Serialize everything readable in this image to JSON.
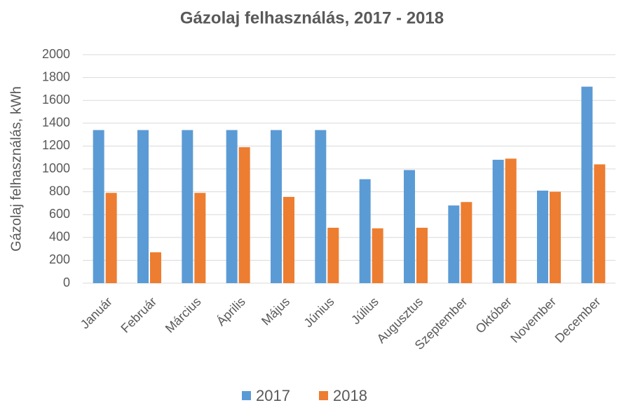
{
  "chart_data": {
    "type": "bar",
    "title": "Gázolaj felhasználás, 2017 - 2018",
    "y_label": "Gázolaj felhasználás, kWh",
    "categories": [
      "Január",
      "Február",
      "Március",
      "Április",
      "Május",
      "Június",
      "Július",
      "Augusztus",
      "Szeptember",
      "Október",
      "November",
      "December"
    ],
    "series": [
      {
        "name": "2017",
        "color": "#5b9bd5",
        "values": [
          1340,
          1340,
          1340,
          1340,
          1340,
          1340,
          910,
          990,
          680,
          1080,
          810,
          1720
        ]
      },
      {
        "name": "2018",
        "color": "#ed7d31",
        "values": [
          790,
          270,
          790,
          1190,
          755,
          485,
          480,
          485,
          710,
          1090,
          800,
          1040
        ]
      }
    ],
    "ylim": [
      0,
      2000
    ],
    "yticks": [
      0,
      200,
      400,
      600,
      800,
      1000,
      1200,
      1400,
      1600,
      1800,
      2000
    ],
    "grid": true,
    "legend": "bottom"
  }
}
